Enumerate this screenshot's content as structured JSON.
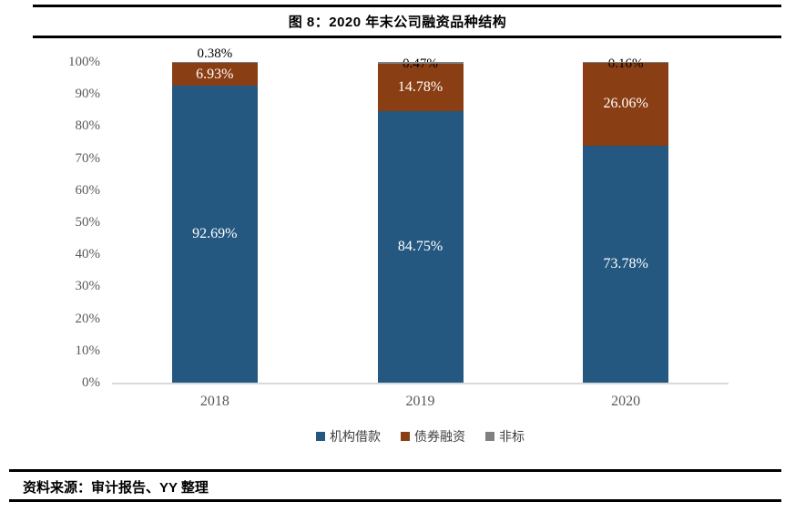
{
  "title": "图 8：2020 年末公司融资品种结构",
  "source": "资料来源：审计报告、YY 整理",
  "chart_data": {
    "type": "bar",
    "stacked": true,
    "orientation": "vertical",
    "categories": [
      "2018",
      "2019",
      "2020"
    ],
    "series": [
      {
        "key": "institutional-loans",
        "name": "机构借款",
        "color": "#255880",
        "label_color": "#ffffff",
        "values": [
          92.69,
          84.75,
          73.78
        ]
      },
      {
        "key": "bond-financing",
        "name": "债券融资",
        "color": "#8a3e13",
        "label_color": "#ffffff",
        "values": [
          6.93,
          14.78,
          26.06
        ]
      },
      {
        "key": "non-standard",
        "name": "非标",
        "color": "#808080",
        "label_color": "#000000",
        "values": [
          0.38,
          0.47,
          0.16
        ]
      }
    ],
    "data_labels": {
      "institutional-loans": [
        "92.69%",
        "84.75%",
        "73.78%"
      ],
      "bond-financing": [
        "6.93%",
        "14.78%",
        "26.06%"
      ],
      "non-standard": [
        "0.38%",
        "0.47%",
        "0.16%"
      ]
    },
    "ylim": [
      0,
      100
    ],
    "yticks": [
      "0%",
      "10%",
      "20%",
      "30%",
      "40%",
      "50%",
      "60%",
      "70%",
      "80%",
      "90%",
      "100%"
    ],
    "grid": false,
    "legend_position": "bottom",
    "axis_line_color": "#d9d9d9",
    "tick_label_color": "#595959"
  }
}
